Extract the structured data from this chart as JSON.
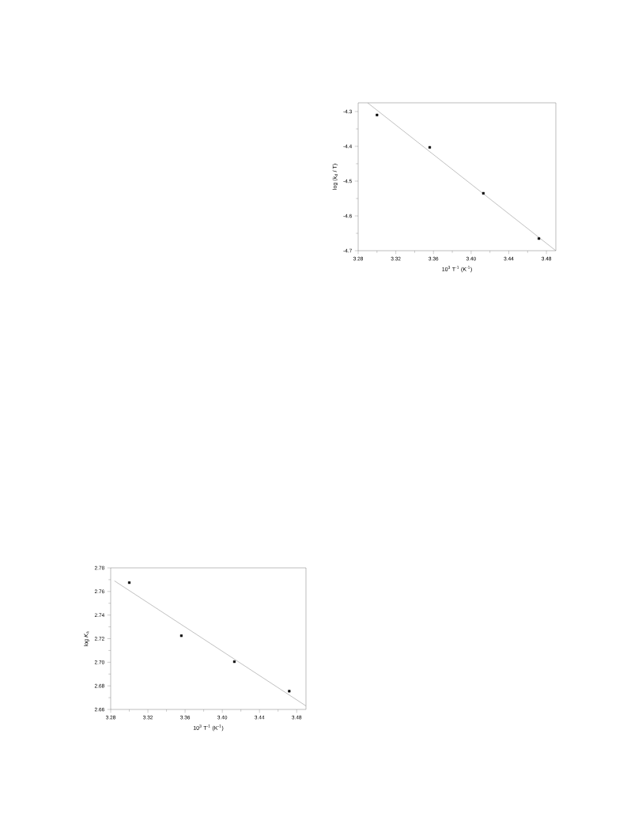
{
  "chart_data": [
    {
      "type": "scatter",
      "xlabel": "10$^{3}$ T$^{-1}$ (K$^{-1}$)",
      "ylabel": "log (*k*$_{d}$ / T)",
      "xlim": [
        3.28,
        3.49
      ],
      "ylim": [
        -4.7,
        -4.275
      ],
      "xticks": [
        3.28,
        3.32,
        3.36,
        {
          "value": 3.4,
          "label": "3.40"
        },
        3.44,
        3.48
      ],
      "yticks": [
        -4.7,
        -4.6,
        -4.5,
        -4.4,
        -4.3
      ],
      "series": [
        {
          "marker": "square",
          "color": "#000000",
          "x": [
            3.3,
            3.356,
            3.413,
            3.472
          ],
          "values": [
            -4.31,
            -4.403,
            -4.535,
            -4.665
          ]
        },
        {
          "type": "line",
          "marker": "none",
          "color": "#808080",
          "x": [
            3.29,
            3.49
          ],
          "values": [
            -4.275,
            -4.7
          ]
        }
      ]
    },
    {
      "type": "scatter",
      "xlabel": "10$^{3}$ T$^{-1}$ (K$^{-1}$)",
      "ylabel": "log *K*$_{a}$",
      "xlim": [
        3.28,
        3.49
      ],
      "ylim": [
        2.66,
        2.78
      ],
      "xticks": [
        3.28,
        3.32,
        3.36,
        {
          "value": 3.4,
          "label": "3.40"
        },
        3.44,
        3.48
      ],
      "yticks": [
        2.66,
        2.68,
        {
          "value": 2.7,
          "label": "2.70"
        },
        2.72,
        2.74,
        2.76,
        2.78
      ],
      "series": [
        {
          "marker": "square",
          "color": "#000000",
          "x": [
            3.3,
            3.356,
            3.413,
            3.472
          ],
          "values": [
            2.7675,
            2.7225,
            2.7005,
            2.6755
          ]
        },
        {
          "type": "line",
          "marker": "none",
          "color": "#808080",
          "x": [
            3.284,
            3.49
          ],
          "values": [
            2.769,
            2.663
          ]
        }
      ]
    }
  ]
}
